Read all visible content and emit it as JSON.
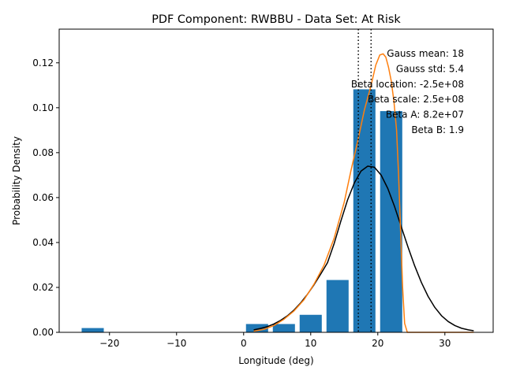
{
  "chart_data": {
    "type": "bar",
    "title": "PDF Component: RWBBU - Data Set: At Risk",
    "xlabel": "Longitude (deg)",
    "ylabel": "Probability Density",
    "xlim": [
      -27.5,
      37.2
    ],
    "ylim": [
      0,
      0.135
    ],
    "xticks": [
      -20,
      -10,
      0,
      10,
      20,
      30
    ],
    "xtick_labels": [
      "−20",
      "−10",
      "0",
      "10",
      "20",
      "30"
    ],
    "yticks": [
      0.0,
      0.02,
      0.04,
      0.06,
      0.08,
      0.1,
      0.12
    ],
    "ytick_labels": [
      "0.00",
      "0.02",
      "0.04",
      "0.06",
      "0.08",
      "0.10",
      "0.12"
    ],
    "grid": false,
    "legend": "none",
    "colors": {
      "bars": "#1f77b4",
      "gauss_curve": "#000000",
      "beta_curve": "#ff7f0e",
      "mean_lines": "#000000"
    },
    "bars": {
      "width": 3.3,
      "x": [
        -22.5,
        2.0,
        6.0,
        10.0,
        14.0,
        18.0,
        22.0
      ],
      "values": [
        0.0019,
        0.0037,
        0.0037,
        0.0078,
        0.0233,
        0.1082,
        0.0985
      ]
    },
    "gauss_curve": {
      "x": [
        1.5,
        2.5,
        3.5,
        4.5,
        5.5,
        6.5,
        7.5,
        8.5,
        9.5,
        10.5,
        11.5,
        12.5,
        13.5,
        14.5,
        15.5,
        16.5,
        17.5,
        18.5,
        19.5,
        20.5,
        21.5,
        22.5,
        23.5,
        24.5,
        25.5,
        26.5,
        27.5,
        28.5,
        29.5,
        30.5,
        31.5,
        32.5,
        33.5,
        34.3
      ],
      "y": [
        0.0011,
        0.0017,
        0.0025,
        0.0037,
        0.0053,
        0.0073,
        0.0099,
        0.0131,
        0.0169,
        0.0212,
        0.026,
        0.031,
        0.0396,
        0.0496,
        0.059,
        0.0665,
        0.0718,
        0.074,
        0.0735,
        0.07,
        0.064,
        0.056,
        0.047,
        0.038,
        0.0296,
        0.0222,
        0.016,
        0.0111,
        0.0074,
        0.0048,
        0.003,
        0.0018,
        0.0011,
        0.0007
      ]
    },
    "beta_curve": {
      "x": [
        1.5,
        3.0,
        4.5,
        6.0,
        7.5,
        9.0,
        10.5,
        12.0,
        13.5,
        15.0,
        16.0,
        17.0,
        18.0,
        19.0,
        19.7,
        20.3,
        20.8,
        21.2,
        21.6,
        22.0,
        22.4,
        22.8,
        23.1,
        23.4,
        23.7,
        24.0,
        24.4,
        26.0,
        30.0,
        34.3
      ],
      "y": [
        0.0005,
        0.0013,
        0.003,
        0.0058,
        0.0095,
        0.0145,
        0.0215,
        0.03,
        0.042,
        0.058,
        0.072,
        0.085,
        0.099,
        0.11,
        0.119,
        0.1235,
        0.124,
        0.1225,
        0.118,
        0.112,
        0.103,
        0.09,
        0.07,
        0.045,
        0.02,
        0.004,
        0.0,
        0.0,
        0.0,
        0.0
      ]
    },
    "mean_lines": [
      17.1,
      19.0
    ],
    "annotations": [
      "Gauss mean: 18",
      "Gauss std: 5.4",
      "Beta location: -2.5e+08",
      "Beta scale: 2.5e+08",
      "Beta A: 8.2e+07",
      "Beta B: 1.9"
    ]
  }
}
